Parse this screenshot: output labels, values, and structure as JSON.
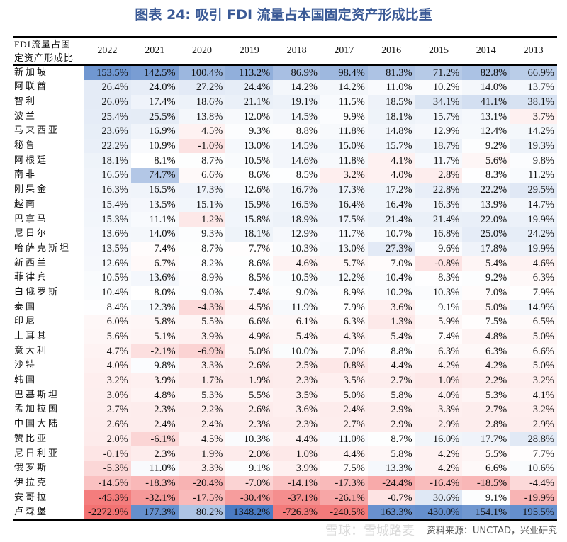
{
  "title": "图表 24: 吸引 FDI 流量占本国固定资产形成比重",
  "footer": "资料来源：UNCTAD，兴业研究",
  "watermark": "雪球：雪城路麦",
  "colors": {
    "positive": "#4a7bc4",
    "negative": "#f26b6b",
    "neutral": "#ffffff",
    "title": "#3b5a96"
  },
  "chart_data": {
    "type": "heatmap",
    "title": "图表 24: 吸引 FDI 流量占本国固定资产形成比重",
    "corner_label": [
      "FDI流量占固",
      "定资产形成比"
    ],
    "columns": [
      "2022",
      "2021",
      "2020",
      "2019",
      "2018",
      "2017",
      "2016",
      "2015",
      "2014",
      "2013"
    ],
    "rows": [
      {
        "name": "新加坡",
        "values": [
          "153.5%",
          "142.5%",
          "100.4%",
          "113.2%",
          "86.9%",
          "98.4%",
          "81.3%",
          "71.2%",
          "82.8%",
          "66.9%"
        ]
      },
      {
        "name": "阿联酋",
        "values": [
          "26.4%",
          "24.0%",
          "27.2%",
          "24.4%",
          "14.2%",
          "14.2%",
          "11.0%",
          "10.2%",
          "14.0%",
          "13.7%"
        ]
      },
      {
        "name": "智利",
        "values": [
          "26.0%",
          "17.4%",
          "18.6%",
          "21.1%",
          "19.1%",
          "11.5%",
          "18.5%",
          "34.1%",
          "41.1%",
          "38.1%"
        ]
      },
      {
        "name": "波兰",
        "values": [
          "25.4%",
          "25.5%",
          "13.8%",
          "12.0%",
          "14.5%",
          "9.9%",
          "18.1%",
          "15.7%",
          "13.1%",
          "3.7%"
        ]
      },
      {
        "name": "马来西亚",
        "values": [
          "23.6%",
          "16.9%",
          "4.5%",
          "9.3%",
          "8.8%",
          "11.8%",
          "14.8%",
          "12.9%",
          "12.4%",
          "14.2%"
        ]
      },
      {
        "name": "秘鲁",
        "values": [
          "22.2%",
          "10.9%",
          "-1.0%",
          "13.0%",
          "14.5%",
          "15.0%",
          "15.7%",
          "18.7%",
          "9.2%",
          "19.3%"
        ]
      },
      {
        "name": "阿根廷",
        "values": [
          "18.1%",
          "8.1%",
          "8.7%",
          "10.5%",
          "14.6%",
          "11.8%",
          "4.1%",
          "11.7%",
          "5.6%",
          "9.8%"
        ]
      },
      {
        "name": "南非",
        "values": [
          "16.5%",
          "74.7%",
          "6.6%",
          "8.6%",
          "8.5%",
          "3.2%",
          "4.0%",
          "2.8%",
          "8.3%",
          "11.2%"
        ]
      },
      {
        "name": "刚果金",
        "values": [
          "16.3%",
          "16.5%",
          "17.3%",
          "12.6%",
          "16.7%",
          "17.3%",
          "17.2%",
          "22.8%",
          "22.2%",
          "29.5%"
        ]
      },
      {
        "name": "越南",
        "values": [
          "15.4%",
          "13.5%",
          "15.1%",
          "15.9%",
          "16.5%",
          "16.4%",
          "16.4%",
          "16.3%",
          "13.9%",
          "14.7%"
        ]
      },
      {
        "name": "巴拿马",
        "values": [
          "15.3%",
          "11.1%",
          "1.2%",
          "15.8%",
          "18.9%",
          "17.5%",
          "21.4%",
          "21.4%",
          "22.0%",
          "19.9%"
        ]
      },
      {
        "name": "尼日尔",
        "values": [
          "13.6%",
          "14.0%",
          "9.3%",
          "18.1%",
          "12.9%",
          "11.7%",
          "10.7%",
          "16.8%",
          "25.0%",
          "24.2%"
        ]
      },
      {
        "name": "哈萨克斯坦",
        "values": [
          "13.5%",
          "7.4%",
          "8.7%",
          "7.7%",
          "10.3%",
          "13.0%",
          "27.3%",
          "9.6%",
          "17.8%",
          "19.9%"
        ]
      },
      {
        "name": "新西兰",
        "values": [
          "12.6%",
          "6.7%",
          "8.2%",
          "8.6%",
          "4.6%",
          "5.7%",
          "7.0%",
          "-0.8%",
          "5.4%",
          "4.6%"
        ]
      },
      {
        "name": "菲律宾",
        "values": [
          "10.5%",
          "13.6%",
          "8.9%",
          "8.5%",
          "10.5%",
          "12.2%",
          "10.4%",
          "8.3%",
          "9.2%",
          "6.3%"
        ]
      },
      {
        "name": "白俄罗斯",
        "values": [
          "10.4%",
          "8.0%",
          "9.0%",
          "7.4%",
          "9.0%",
          "8.9%",
          "10.2%",
          "10.3%",
          "7.0%",
          "7.9%"
        ]
      },
      {
        "name": "泰国",
        "values": [
          "8.4%",
          "12.3%",
          "-4.3%",
          "4.5%",
          "11.9%",
          "7.9%",
          "3.6%",
          "9.1%",
          "5.0%",
          "14.9%"
        ]
      },
      {
        "name": "印尼",
        "values": [
          "6.0%",
          "5.8%",
          "5.5%",
          "6.6%",
          "6.1%",
          "6.3%",
          "1.3%",
          "5.9%",
          "7.5%",
          "6.5%"
        ]
      },
      {
        "name": "土耳其",
        "values": [
          "5.6%",
          "5.1%",
          "3.9%",
          "4.9%",
          "5.4%",
          "4.3%",
          "5.4%",
          "7.4%",
          "4.8%",
          "5.0%"
        ]
      },
      {
        "name": "意大利",
        "values": [
          "4.7%",
          "-2.1%",
          "-6.9%",
          "5.0%",
          "10.0%",
          "7.0%",
          "8.8%",
          "6.3%",
          "6.3%",
          "6.6%"
        ]
      },
      {
        "name": "沙特",
        "values": [
          "4.0%",
          "9.8%",
          "3.3%",
          "2.6%",
          "2.5%",
          "0.8%",
          "4.4%",
          "4.2%",
          "4.2%",
          "5.0%"
        ]
      },
      {
        "name": "韩国",
        "values": [
          "3.2%",
          "3.9%",
          "1.7%",
          "1.9%",
          "2.3%",
          "3.5%",
          "2.7%",
          "1.0%",
          "2.2%",
          "3.2%"
        ]
      },
      {
        "name": "巴基斯坦",
        "values": [
          "3.0%",
          "4.8%",
          "5.3%",
          "5.5%",
          "3.5%",
          "5.0%",
          "5.8%",
          "4.0%",
          "5.3%",
          "4.1%"
        ]
      },
      {
        "name": "孟加拉国",
        "values": [
          "2.7%",
          "2.3%",
          "2.2%",
          "2.6%",
          "3.6%",
          "2.4%",
          "2.9%",
          "3.3%",
          "2.7%",
          "3.2%"
        ]
      },
      {
        "name": "中国大陆",
        "values": [
          "2.6%",
          "2.4%",
          "2.4%",
          "2.3%",
          "2.3%",
          "2.7%",
          "2.9%",
          "2.9%",
          "2.8%",
          "2.9%"
        ]
      },
      {
        "name": "赞比亚",
        "values": [
          "2.0%",
          "-6.1%",
          "4.5%",
          "10.3%",
          "4.4%",
          "11.0%",
          "8.7%",
          "16.0%",
          "17.7%",
          "28.8%"
        ]
      },
      {
        "name": "尼日利亚",
        "values": [
          "-0.1%",
          "2.3%",
          "1.9%",
          "2.0%",
          "1.0%",
          "4.4%",
          "5.8%",
          "4.2%",
          "5.5%",
          "7.7%"
        ]
      },
      {
        "name": "俄罗斯",
        "values": [
          "-5.3%",
          "11.0%",
          "3.3%",
          "9.1%",
          "3.9%",
          "7.5%",
          "13.3%",
          "4.2%",
          "6.6%",
          "10.6%"
        ]
      },
      {
        "name": "伊拉克",
        "values": [
          "-14.5%",
          "-18.3%",
          "-20.4%",
          "-7.0%",
          "-14.1%",
          "-17.3%",
          "-24.4%",
          "-16.4%",
          "-18.5%",
          "-4.4%"
        ]
      },
      {
        "name": "安哥拉",
        "values": [
          "-45.3%",
          "-32.1%",
          "-17.5%",
          "-30.4%",
          "-37.1%",
          "-26.1%",
          "-0.7%",
          "30.6%",
          "9.1%",
          "-19.9%"
        ]
      },
      {
        "name": "卢森堡",
        "values": [
          "-2272.9%",
          "177.3%",
          "80.2%",
          "1348.2%",
          "-726.3%",
          "-240.5%",
          "163.3%",
          "430.0%",
          "154.1%",
          "195.5%"
        ]
      }
    ]
  }
}
